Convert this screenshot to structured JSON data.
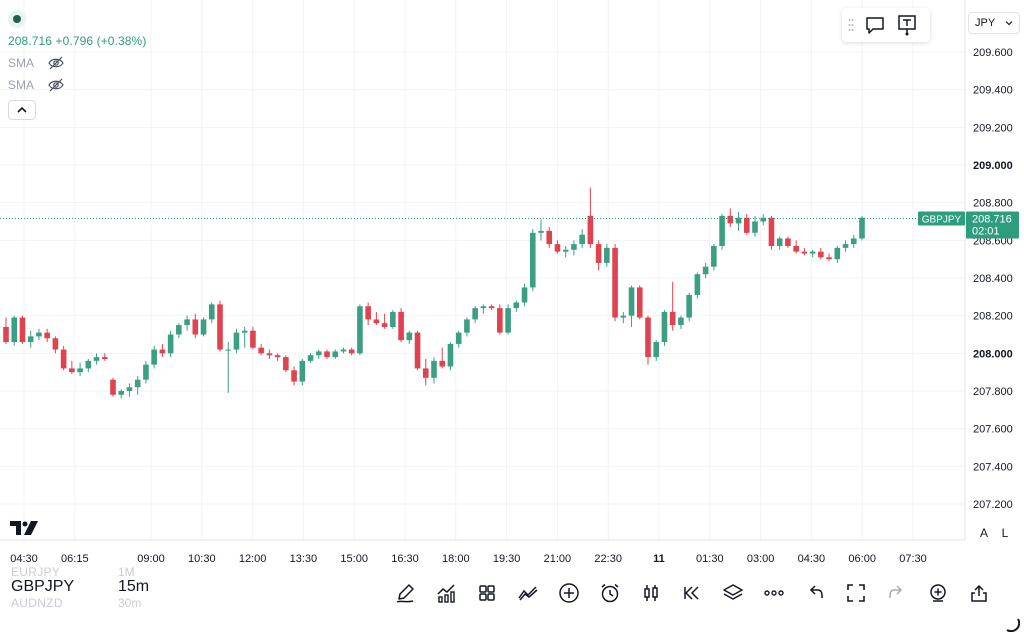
{
  "symbol_header": {
    "price": "208.716",
    "change": "+0.796",
    "change_pct": "(+0.38%)",
    "indicators": [
      {
        "label": "SMA",
        "icon": "eye-off-icon"
      },
      {
        "label": "SMA",
        "icon": "eye-off-icon"
      }
    ]
  },
  "currency_selector": {
    "label": "JPY"
  },
  "price_tag": {
    "symbol": "GBPJPY",
    "price": "208.716",
    "countdown": "02:01"
  },
  "scale_buttons": {
    "auto": "A",
    "log": "L"
  },
  "symbol_switcher": {
    "rows": [
      {
        "symbol": "EURJPY",
        "timeframe": "1M"
      },
      {
        "symbol": "GBPJPY",
        "timeframe": "15m"
      },
      {
        "symbol": "AUDNZD",
        "timeframe": "30m"
      }
    ]
  },
  "toolbar": {
    "buttons": [
      "draw-icon",
      "indicators-icon",
      "layouts-icon",
      "compare-icon",
      "add-icon",
      "alert-icon",
      "chart-type-icon",
      "replay-icon",
      "layers-icon",
      "more-icon",
      "undo-icon",
      "fullscreen-icon",
      "redo-icon",
      "add-to-watchlist-icon",
      "share-icon"
    ]
  },
  "colors": {
    "up": "#3c9f83",
    "down": "#e0424f",
    "accent": "#2e9d7d"
  },
  "chart_data": {
    "type": "candlestick",
    "symbol": "GBPJPY",
    "timeframe": "15m",
    "y_axis": {
      "ticks": [
        "209.600",
        "209.400",
        "209.200",
        "209.000",
        "208.800",
        "208.600",
        "208.400",
        "208.200",
        "208.000",
        "207.800",
        "207.600",
        "207.400",
        "207.200"
      ],
      "bold_ticks": [
        "209.000",
        "208.000"
      ],
      "range": [
        207.05,
        209.72
      ]
    },
    "x_axis": {
      "ticks": [
        "04:30",
        "06:15",
        "09:00",
        "10:30",
        "12:00",
        "13:30",
        "15:00",
        "16:30",
        "18:00",
        "19:30",
        "21:00",
        "22:30",
        "11",
        "01:30",
        "03:00",
        "04:30",
        "06:00",
        "07:30"
      ],
      "bold_ticks": [
        "11"
      ]
    },
    "last_price": 208.716,
    "grid": true,
    "candles": [
      [
        208.14,
        208.19,
        208.05,
        208.06
      ],
      [
        208.06,
        208.2,
        208.04,
        208.19
      ],
      [
        208.19,
        208.2,
        208.05,
        208.06
      ],
      [
        208.06,
        208.12,
        208.03,
        208.09
      ],
      [
        208.09,
        208.13,
        208.07,
        208.11
      ],
      [
        208.11,
        208.13,
        208.06,
        208.08
      ],
      [
        208.08,
        208.09,
        208.0,
        208.02
      ],
      [
        208.02,
        208.04,
        207.91,
        207.92
      ],
      [
        207.92,
        207.96,
        207.89,
        207.9
      ],
      [
        207.9,
        207.95,
        207.88,
        207.92
      ],
      [
        207.92,
        207.97,
        207.9,
        207.96
      ],
      [
        207.96,
        208.0,
        207.94,
        207.98
      ],
      [
        207.98,
        208.0,
        207.96,
        207.97
      ],
      [
        207.86,
        207.87,
        207.77,
        207.78
      ],
      [
        207.78,
        207.81,
        207.76,
        207.8
      ],
      [
        207.8,
        207.84,
        207.77,
        207.82
      ],
      [
        207.82,
        207.88,
        207.78,
        207.86
      ],
      [
        207.86,
        207.96,
        207.84,
        207.94
      ],
      [
        207.94,
        208.04,
        207.92,
        208.02
      ],
      [
        208.02,
        208.05,
        207.98,
        208.0
      ],
      [
        208.0,
        208.12,
        207.98,
        208.1
      ],
      [
        208.1,
        208.16,
        208.08,
        208.15
      ],
      [
        208.15,
        208.2,
        208.12,
        208.18
      ],
      [
        208.18,
        208.21,
        208.08,
        208.1
      ],
      [
        208.1,
        208.19,
        208.09,
        208.18
      ],
      [
        208.18,
        208.27,
        208.16,
        208.26
      ],
      [
        208.26,
        208.28,
        208.01,
        208.02
      ],
      [
        208.02,
        208.06,
        207.79,
        208.02
      ],
      [
        208.02,
        208.13,
        208.0,
        208.11
      ],
      [
        208.11,
        208.14,
        208.03,
        208.12
      ],
      [
        208.12,
        208.14,
        208.02,
        208.03
      ],
      [
        208.03,
        208.05,
        207.99,
        208.0
      ],
      [
        208.0,
        208.02,
        207.97,
        207.99
      ],
      [
        207.99,
        208.0,
        207.96,
        207.98
      ],
      [
        207.98,
        207.99,
        207.9,
        207.91
      ],
      [
        207.91,
        207.93,
        207.83,
        207.85
      ],
      [
        207.85,
        207.97,
        207.83,
        207.96
      ],
      [
        207.96,
        208.0,
        207.95,
        207.99
      ],
      [
        207.99,
        208.02,
        207.97,
        208.01
      ],
      [
        208.01,
        208.02,
        207.97,
        207.98
      ],
      [
        207.98,
        208.02,
        207.97,
        208.01
      ],
      [
        208.01,
        208.03,
        208.0,
        208.02
      ],
      [
        208.02,
        208.03,
        207.99,
        208.0
      ],
      [
        208.0,
        208.26,
        207.99,
        208.25
      ],
      [
        208.25,
        208.27,
        208.15,
        208.18
      ],
      [
        208.18,
        208.22,
        208.15,
        208.16
      ],
      [
        208.16,
        208.21,
        208.13,
        208.14
      ],
      [
        208.14,
        208.23,
        208.13,
        208.22
      ],
      [
        208.22,
        208.24,
        208.06,
        208.07
      ],
      [
        208.07,
        208.12,
        208.05,
        208.11
      ],
      [
        208.11,
        208.12,
        207.91,
        207.92
      ],
      [
        207.92,
        207.97,
        207.83,
        207.87
      ],
      [
        207.87,
        207.98,
        207.84,
        207.96
      ],
      [
        207.96,
        208.03,
        207.92,
        207.93
      ],
      [
        207.93,
        208.06,
        207.91,
        208.05
      ],
      [
        208.05,
        208.12,
        208.03,
        208.11
      ],
      [
        208.11,
        208.19,
        208.09,
        208.18
      ],
      [
        208.18,
        208.25,
        208.16,
        208.24
      ],
      [
        208.24,
        208.26,
        208.21,
        208.25
      ],
      [
        208.25,
        208.26,
        208.23,
        208.24
      ],
      [
        208.24,
        208.26,
        208.1,
        208.11
      ],
      [
        208.11,
        208.26,
        208.1,
        208.24
      ],
      [
        208.24,
        208.28,
        208.22,
        208.27
      ],
      [
        208.27,
        208.37,
        208.25,
        208.35
      ],
      [
        208.35,
        208.66,
        208.33,
        208.64
      ],
      [
        208.64,
        208.71,
        208.6,
        208.65
      ],
      [
        208.65,
        208.67,
        208.56,
        208.58
      ],
      [
        208.58,
        208.6,
        208.53,
        208.54
      ],
      [
        208.54,
        208.57,
        208.51,
        208.55
      ],
      [
        208.55,
        208.6,
        208.52,
        208.58
      ],
      [
        208.58,
        208.66,
        208.56,
        208.63
      ],
      [
        208.73,
        208.88,
        208.56,
        208.58
      ],
      [
        208.58,
        208.6,
        208.44,
        208.48
      ],
      [
        208.48,
        208.58,
        208.46,
        208.56
      ],
      [
        208.56,
        208.58,
        208.17,
        208.19
      ],
      [
        208.19,
        208.22,
        208.16,
        208.2
      ],
      [
        208.2,
        208.36,
        208.14,
        208.35
      ],
      [
        208.35,
        208.36,
        208.18,
        208.19
      ],
      [
        208.19,
        208.2,
        207.94,
        207.98
      ],
      [
        207.98,
        208.07,
        207.96,
        208.06
      ],
      [
        208.06,
        208.23,
        208.04,
        208.22
      ],
      [
        208.22,
        208.38,
        208.12,
        208.15
      ],
      [
        208.15,
        208.2,
        208.13,
        208.19
      ],
      [
        208.19,
        208.32,
        208.17,
        208.31
      ],
      [
        208.31,
        208.43,
        208.29,
        208.42
      ],
      [
        208.42,
        208.48,
        208.4,
        208.46
      ],
      [
        208.46,
        208.58,
        208.44,
        208.57
      ],
      [
        208.57,
        208.74,
        208.55,
        208.73
      ],
      [
        208.73,
        208.77,
        208.67,
        208.69
      ],
      [
        208.69,
        208.75,
        208.65,
        208.72
      ],
      [
        208.72,
        208.74,
        208.63,
        208.64
      ],
      [
        208.64,
        208.73,
        208.62,
        208.7
      ],
      [
        208.7,
        208.74,
        208.68,
        208.72
      ],
      [
        208.72,
        208.73,
        208.55,
        208.57
      ],
      [
        208.57,
        208.62,
        208.55,
        208.61
      ],
      [
        208.61,
        208.62,
        208.56,
        208.57
      ],
      [
        208.57,
        208.6,
        208.53,
        208.54
      ],
      [
        208.54,
        208.56,
        208.52,
        208.53
      ],
      [
        208.53,
        208.55,
        208.51,
        208.54
      ],
      [
        208.54,
        208.56,
        208.5,
        208.51
      ],
      [
        208.51,
        208.53,
        208.49,
        208.5
      ],
      [
        208.5,
        208.57,
        208.48,
        208.56
      ],
      [
        208.56,
        208.6,
        208.54,
        208.58
      ],
      [
        208.58,
        208.63,
        208.56,
        208.61
      ],
      [
        208.61,
        208.73,
        208.6,
        208.72
      ]
    ]
  }
}
